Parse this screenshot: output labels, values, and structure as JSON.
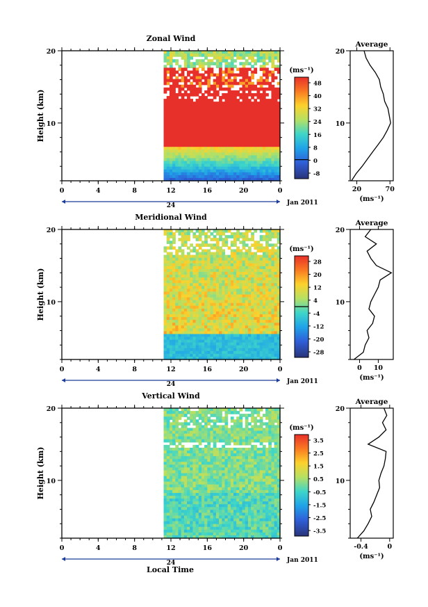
{
  "figure": {
    "xlabel": "Local Time",
    "cbar_unit": "(ms⁻¹)",
    "avg_unit": "(ms⁻¹)"
  },
  "chart_data": [
    {
      "type": "heatmap",
      "title": "Zonal Wind",
      "ylabel": "Height (km)",
      "ylim": [
        2,
        20
      ],
      "yticks": [
        10,
        20
      ],
      "xlim": [
        0,
        24
      ],
      "xticks": [
        "0",
        "4",
        "8",
        "12",
        "16",
        "20",
        "0"
      ],
      "date_label": "24",
      "date_suffix": "Jan 2011",
      "data_start_hour": 11.2,
      "colorbar": {
        "label": "(ms⁻¹)",
        "ticks": [
          "48",
          "40",
          "32",
          "24",
          "16",
          "8",
          "0",
          "-8"
        ],
        "min": -12,
        "max": 52,
        "contour": 0
      },
      "average": {
        "title": "Average",
        "xlim": [
          10,
          75
        ],
        "xticks": [
          20,
          70
        ],
        "xlabel": "(ms⁻¹)",
        "height": [
          2,
          3,
          4,
          5,
          6,
          7,
          8,
          9,
          10,
          11,
          12,
          13,
          14,
          15,
          16,
          17,
          18,
          19,
          20
        ],
        "value": [
          12,
          19,
          28,
          36,
          44,
          52,
          60,
          66,
          71,
          69,
          67,
          62,
          60,
          56,
          54,
          48,
          40,
          34,
          31
        ]
      }
    },
    {
      "type": "heatmap",
      "title": "Meridional Wind",
      "ylabel": "Height (km)",
      "ylim": [
        2,
        20
      ],
      "yticks": [
        10,
        20
      ],
      "xlim": [
        0,
        24
      ],
      "xticks": [
        "0",
        "4",
        "8",
        "12",
        "16",
        "20",
        "0"
      ],
      "date_label": "24",
      "date_suffix": "Jan 2011",
      "data_start_hour": 11.2,
      "colorbar": {
        "label": "(ms⁻¹)",
        "ticks": [
          "28",
          "20",
          "12",
          "4",
          "-4",
          "-12",
          "-20",
          "-28"
        ],
        "min": -32,
        "max": 32,
        "contour": 0
      },
      "average": {
        "title": "Average",
        "xlim": [
          -5,
          18
        ],
        "xticks": [
          0,
          10
        ],
        "xlabel": "(ms⁻¹)",
        "height": [
          2,
          3,
          4,
          5,
          6,
          7,
          8,
          9,
          10,
          11,
          12,
          13,
          14,
          15,
          16,
          17,
          18,
          19,
          20
        ],
        "value": [
          -3,
          2,
          3,
          5,
          4,
          7,
          8,
          5,
          6,
          8,
          10,
          11,
          17,
          9,
          6,
          4,
          9,
          3,
          6
        ]
      }
    },
    {
      "type": "heatmap",
      "title": "Vertical Wind",
      "ylabel": "Height (km)",
      "ylim": [
        2,
        20
      ],
      "yticks": [
        10,
        20
      ],
      "xlim": [
        0,
        24
      ],
      "xticks": [
        "0",
        "4",
        "8",
        "12",
        "16",
        "20",
        "0"
      ],
      "date_label": "24",
      "date_suffix": "Jan 2011",
      "data_start_hour": 11.2,
      "colorbar": {
        "label": "(ms⁻¹)",
        "ticks": [
          "3.5",
          "2.5",
          "1.5",
          "0.5",
          "-0.5",
          "-1.5",
          "-2.5",
          "-3.5"
        ],
        "min": -4,
        "max": 4
      },
      "average": {
        "title": "Average",
        "xlim": [
          -0.55,
          0.05
        ],
        "xticks": [
          -0.4,
          0.0
        ],
        "xlabel": "(ms⁻¹)",
        "height": [
          2,
          3,
          4,
          5,
          6,
          7,
          8,
          9,
          10,
          11,
          12,
          13,
          14,
          15,
          16,
          17,
          18,
          19,
          20
        ],
        "value": [
          -0.45,
          -0.36,
          -0.3,
          -0.25,
          -0.27,
          -0.22,
          -0.18,
          -0.14,
          -0.15,
          -0.12,
          -0.08,
          -0.06,
          -0.05,
          -0.3,
          -0.15,
          -0.05,
          -0.1,
          -0.04,
          -0.08
        ]
      }
    }
  ]
}
